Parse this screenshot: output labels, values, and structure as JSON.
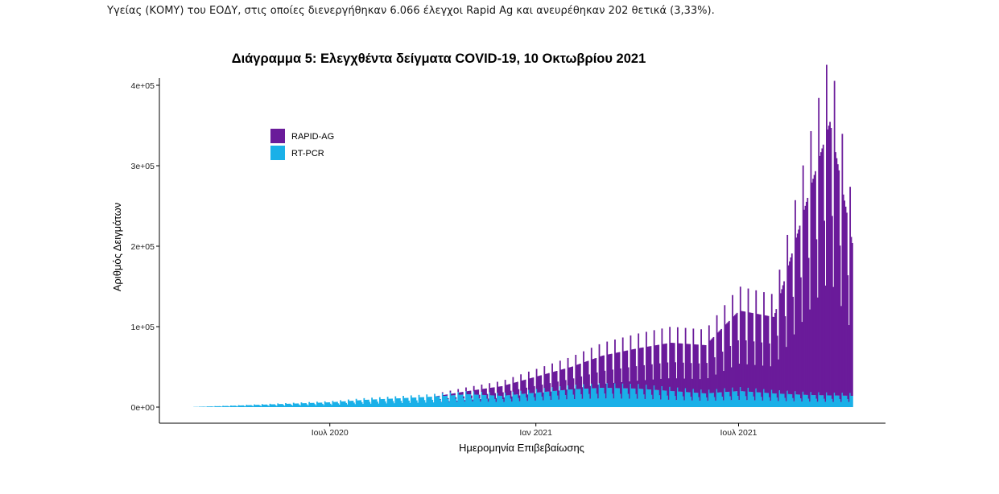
{
  "intro_text": "Υγείας (ΚΟΜΥ) του ΕΟΔΥ, στις οποίες διενεργήθηκαν 6.066 έλεγχοι Rapid Ag και ανευρέθηκαν 202 θετικά (3,33%).",
  "chart_data": {
    "type": "bar",
    "stacked": true,
    "title": "Διάγραμμα 5: Ελεγχθέντα δείγματα COVID-19, 10 Οκτωβρίου 2021",
    "xlabel": "Ημερομηνία Επιβεβαίωσης",
    "ylabel": "Αριθμός Δειγμάτων",
    "xlim": [
      "2020-03-01",
      "2021-10-10"
    ],
    "ylim": [
      0,
      400000
    ],
    "yticks": [
      0,
      100000,
      200000,
      300000,
      400000
    ],
    "ytick_labels": [
      "0e+00",
      "1e+05",
      "2e+05",
      "3e+05",
      "4e+05"
    ],
    "xticks": [
      "2020-07-01",
      "2021-01-01",
      "2021-07-01"
    ],
    "xtick_labels": [
      "Ιουλ 2020",
      "Ιαν 2021",
      "Ιουλ 2021"
    ],
    "legend_position": "top-left",
    "grid": false,
    "series": [
      {
        "name": "RT-PCR",
        "color": "#1ab0e8",
        "points": [
          [
            "2020-03-01",
            200
          ],
          [
            "2020-04-01",
            1500
          ],
          [
            "2020-05-01",
            3000
          ],
          [
            "2020-06-01",
            4500
          ],
          [
            "2020-07-01",
            6000
          ],
          [
            "2020-08-01",
            9000
          ],
          [
            "2020-09-01",
            11000
          ],
          [
            "2020-10-01",
            13000
          ],
          [
            "2020-11-01",
            16000
          ],
          [
            "2020-12-01",
            14000
          ],
          [
            "2021-01-01",
            18000
          ],
          [
            "2021-02-01",
            22000
          ],
          [
            "2021-03-01",
            24000
          ],
          [
            "2021-04-01",
            23000
          ],
          [
            "2021-05-01",
            20000
          ],
          [
            "2021-06-01",
            17000
          ],
          [
            "2021-07-01",
            20000
          ],
          [
            "2021-08-01",
            17000
          ],
          [
            "2021-09-01",
            15000
          ],
          [
            "2021-10-10",
            14000
          ]
        ]
      },
      {
        "name": "RAPID-AG",
        "color": "#6a1b9a",
        "points": [
          [
            "2020-03-01",
            0
          ],
          [
            "2020-10-01",
            0
          ],
          [
            "2020-11-01",
            4000
          ],
          [
            "2020-12-01",
            12000
          ],
          [
            "2021-01-01",
            20000
          ],
          [
            "2021-02-01",
            28000
          ],
          [
            "2021-03-01",
            40000
          ],
          [
            "2021-04-01",
            50000
          ],
          [
            "2021-05-01",
            60000
          ],
          [
            "2021-06-01",
            60000
          ],
          [
            "2021-07-01",
            100000
          ],
          [
            "2021-08-01",
            95000
          ],
          [
            "2021-09-01",
            250000
          ],
          [
            "2021-09-20",
            340000
          ],
          [
            "2021-10-10",
            190000
          ]
        ]
      }
    ]
  }
}
